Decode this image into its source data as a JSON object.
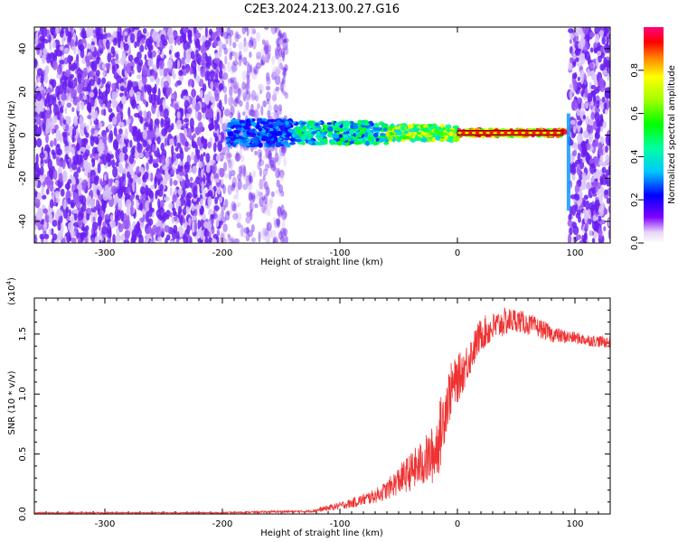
{
  "figure": {
    "title": "C2E3.2024.213.00.27.G16"
  },
  "chart_data": [
    {
      "type": "heatmap",
      "xlabel": "Height of straight line (km)",
      "ylabel": "Frequency (Hz)",
      "xlim": [
        -360,
        130
      ],
      "ylim": [
        -50,
        50
      ],
      "xticks": [
        -300,
        -200,
        -100,
        0,
        100
      ],
      "yticks": [
        -40,
        -20,
        0,
        20,
        40
      ],
      "colorbar": {
        "label": "Normalized spectral amplitude",
        "range": [
          0.0,
          1.0
        ],
        "ticks": [
          0.0,
          0.2,
          0.4,
          0.6,
          0.8
        ],
        "tick_labels": [
          "0.0",
          "0.2",
          "0.4",
          "0.6",
          "0.8"
        ]
      },
      "regions": [
        {
          "x": [
            -360,
            -200
          ],
          "freq": [
            -50,
            50
          ],
          "amplitude": 0.08,
          "pattern": "broadband noise"
        },
        {
          "x": [
            -200,
            -145
          ],
          "freq": [
            -50,
            50
          ],
          "amplitude": 0.04,
          "pattern": "faded noise"
        },
        {
          "x": [
            -195,
            -130
          ],
          "freq": [
            -5,
            8
          ],
          "amplitude": 0.15,
          "pattern": "narrow band"
        },
        {
          "x": [
            -140,
            -60
          ],
          "freq": [
            -5,
            8
          ],
          "amplitude": 0.3,
          "pattern": "narrow band"
        },
        {
          "x": [
            -60,
            0
          ],
          "freq": [
            -3,
            5
          ],
          "amplitude": 0.5,
          "pattern": "narrow band"
        },
        {
          "x": [
            0,
            90
          ],
          "freq": [
            -1,
            2
          ],
          "amplitude": 0.95,
          "pattern": "carrier line"
        },
        {
          "x": [
            95,
            130
          ],
          "freq": [
            -50,
            50
          ],
          "amplitude": 0.1,
          "pattern": "broadband noise"
        }
      ]
    },
    {
      "type": "line",
      "xlabel": "Height of straight line (km)",
      "ylabel": "SNR (10 * v/v)",
      "y_multiplier": "(x10",
      "y_exponent": "4",
      "xlim": [
        -360,
        130
      ],
      "ylim": [
        0,
        1.8
      ],
      "xticks": [
        -300,
        -200,
        -100,
        0,
        100
      ],
      "yticks": [
        0.0,
        0.5,
        1.0,
        1.5
      ],
      "ytick_labels": [
        "0.0",
        "0.5",
        "1.0",
        "1.5"
      ],
      "series_color": "#ee3333",
      "x": [
        -360,
        -300,
        -250,
        -200,
        -150,
        -130,
        -120,
        -110,
        -100,
        -90,
        -80,
        -70,
        -60,
        -50,
        -40,
        -30,
        -20,
        -15,
        -10,
        -5,
        0,
        5,
        10,
        15,
        20,
        30,
        40,
        50,
        60,
        70,
        80,
        90,
        100,
        110,
        120,
        130
      ],
      "y": [
        0.01,
        0.01,
        0.01,
        0.01,
        0.02,
        0.02,
        0.03,
        0.05,
        0.07,
        0.09,
        0.12,
        0.15,
        0.2,
        0.28,
        0.35,
        0.42,
        0.5,
        0.65,
        0.9,
        1.05,
        1.12,
        1.2,
        1.3,
        1.4,
        1.5,
        1.55,
        1.6,
        1.62,
        1.58,
        1.55,
        1.5,
        1.48,
        1.47,
        1.45,
        1.44,
        1.43
      ],
      "noise_amplitude": [
        0.005,
        0.005,
        0.005,
        0.005,
        0.01,
        0.01,
        0.015,
        0.025,
        0.03,
        0.04,
        0.05,
        0.06,
        0.08,
        0.12,
        0.16,
        0.2,
        0.25,
        0.3,
        0.25,
        0.22,
        0.2,
        0.18,
        0.16,
        0.15,
        0.14,
        0.13,
        0.12,
        0.1,
        0.09,
        0.08,
        0.07,
        0.06,
        0.05,
        0.05,
        0.05,
        0.05
      ]
    }
  ]
}
